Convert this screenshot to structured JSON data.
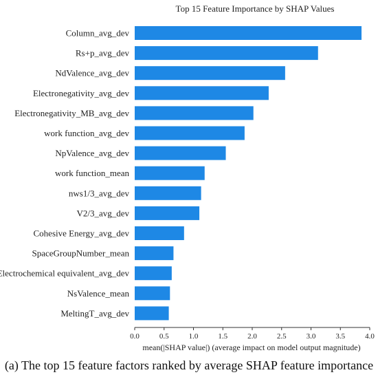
{
  "chart_data": {
    "type": "bar",
    "orientation": "horizontal",
    "title": "Top 15 Feature Importance by SHAP Values",
    "xlabel": "mean(|SHAP value|) (average impact on model output magnitude)",
    "ylabel": "",
    "xlim": [
      0,
      4.0
    ],
    "xticks": [
      "0.0",
      "0.5",
      "1.0",
      "1.5",
      "2.0",
      "2.5",
      "3.0",
      "3.5",
      "4.0"
    ],
    "grid": false,
    "bar_color": "#1e88e5",
    "categories": [
      "Column_avg_dev",
      "Rs+p_avg_dev",
      "NdValence_avg_dev",
      "Electronegativity_avg_dev",
      "Electronegativity_MB_avg_dev",
      "work function_avg_dev",
      "NpValence_avg_dev",
      "work function_mean",
      "nws1/3_avg_dev",
      "V2/3_avg_dev",
      "Cohesive Energy_avg_dev",
      "SpaceGroupNumber_mean",
      "Electrochemical equivalent_avg_dev",
      "NsValence_mean",
      "MeltingT_avg_dev"
    ],
    "values": [
      3.86,
      3.12,
      2.56,
      2.28,
      2.02,
      1.87,
      1.55,
      1.19,
      1.13,
      1.1,
      0.84,
      0.66,
      0.63,
      0.6,
      0.58
    ]
  },
  "caption": "(a) The top 15 feature factors ranked by average SHAP feature importance"
}
